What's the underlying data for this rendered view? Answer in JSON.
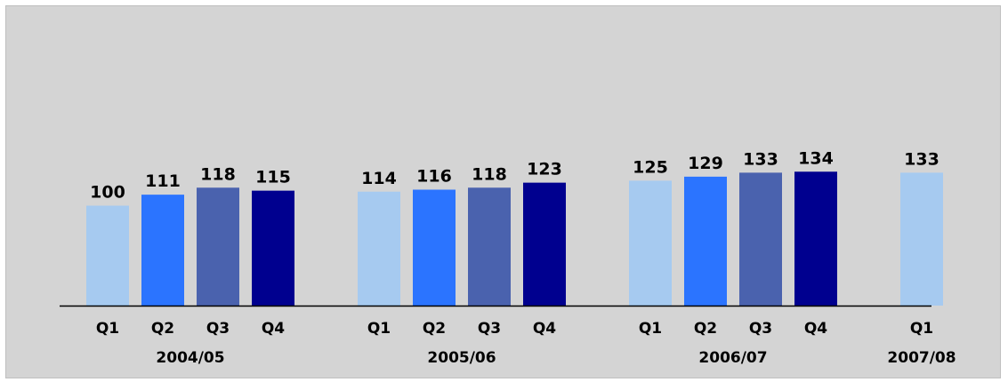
{
  "chart_data": {
    "type": "bar",
    "title": "",
    "xlabel": "",
    "ylabel": "",
    "ylim": [
      0,
      140
    ],
    "grid": false,
    "legend": "none",
    "categories": [
      "Q1",
      "Q2",
      "Q3",
      "Q4",
      "Q1",
      "Q2",
      "Q3",
      "Q4",
      "Q1",
      "Q2",
      "Q3",
      "Q4",
      "Q1"
    ],
    "groups": [
      {
        "label": "2004/05",
        "start": 0,
        "count": 4
      },
      {
        "label": "2005/06",
        "start": 4,
        "count": 4
      },
      {
        "label": "2006/07",
        "start": 8,
        "count": 4
      },
      {
        "label": "2007/08",
        "start": 12,
        "count": 1
      }
    ],
    "values": [
      100,
      111,
      118,
      115,
      114,
      116,
      118,
      123,
      125,
      129,
      133,
      134,
      133
    ],
    "quarter_colors": {
      "Q1": "#a6caf0",
      "Q2": "#2b74ff",
      "Q3": "#4a62ae",
      "Q4": "#00008f"
    },
    "background_color": "#d4d4d4",
    "axis_color": "#000000"
  }
}
